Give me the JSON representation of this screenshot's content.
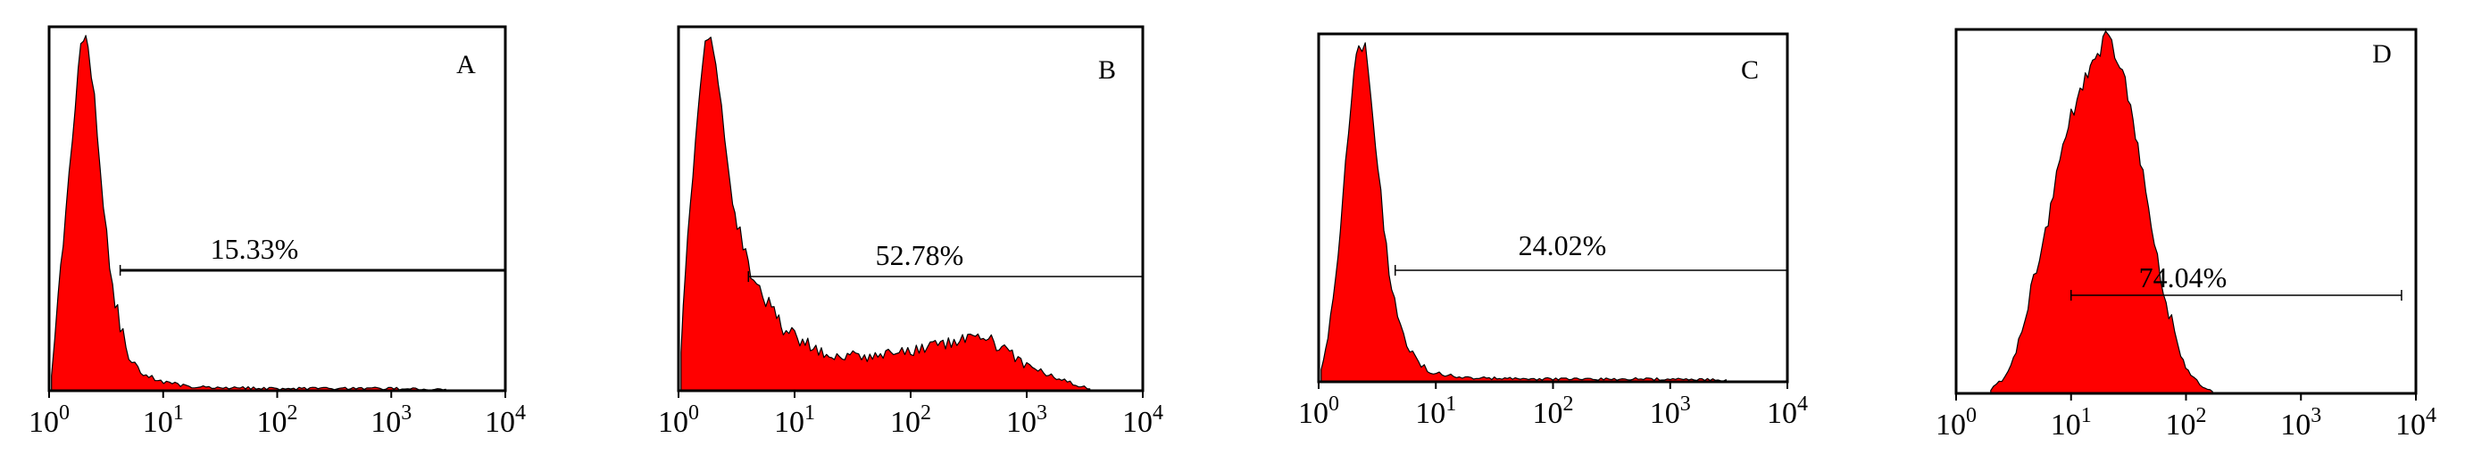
{
  "chart_data": [
    {
      "type": "area",
      "title": "A",
      "xscale": "log",
      "xlim": [
        1,
        10000
      ],
      "xticks": [
        {
          "base": "10",
          "exp": "0"
        },
        {
          "base": "10",
          "exp": "1"
        },
        {
          "base": "10",
          "exp": "2"
        },
        {
          "base": "10",
          "exp": "3"
        },
        {
          "base": "10",
          "exp": "4"
        }
      ],
      "gate": {
        "label": "15.33%",
        "x_range": [
          4.2,
          10000
        ]
      },
      "histogram": {
        "x": [
          1.05,
          1.2,
          1.4,
          1.6,
          1.8,
          2.0,
          2.2,
          2.5,
          2.8,
          3.2,
          3.6,
          4.2,
          5,
          6,
          7.5,
          9,
          12,
          15,
          20,
          30,
          50,
          100,
          300,
          1000,
          3000
        ],
        "y": [
          0.05,
          0.25,
          0.5,
          0.72,
          0.9,
          1.0,
          0.96,
          0.82,
          0.62,
          0.44,
          0.29,
          0.18,
          0.1,
          0.06,
          0.04,
          0.03,
          0.02,
          0.015,
          0.01,
          0.01,
          0.008,
          0.006,
          0.006,
          0.006,
          0.004
        ]
      }
    },
    {
      "type": "area",
      "title": "B",
      "xscale": "log",
      "xlim": [
        1,
        10000
      ],
      "xticks": [
        {
          "base": "10",
          "exp": "0"
        },
        {
          "base": "10",
          "exp": "1"
        },
        {
          "base": "10",
          "exp": "2"
        },
        {
          "base": "10",
          "exp": "3"
        },
        {
          "base": "10",
          "exp": "4"
        }
      ],
      "gate": {
        "label": "52.78%",
        "x_range": [
          4.0,
          10000
        ]
      },
      "histogram": {
        "x": [
          1.05,
          1.2,
          1.4,
          1.6,
          1.8,
          2.0,
          2.2,
          2.5,
          2.8,
          3.2,
          3.6,
          4.2,
          5,
          6,
          7,
          8,
          10,
          13,
          17,
          22,
          30,
          40,
          55,
          75,
          100,
          140,
          200,
          280,
          400,
          550,
          750,
          1000,
          1400,
          2000,
          2800,
          3500
        ],
        "y": [
          0.12,
          0.42,
          0.72,
          0.92,
          1.0,
          0.97,
          0.86,
          0.72,
          0.58,
          0.47,
          0.4,
          0.33,
          0.28,
          0.24,
          0.21,
          0.18,
          0.15,
          0.13,
          0.11,
          0.1,
          0.1,
          0.09,
          0.1,
          0.12,
          0.11,
          0.12,
          0.13,
          0.14,
          0.15,
          0.13,
          0.1,
          0.07,
          0.05,
          0.03,
          0.015,
          0.005
        ]
      }
    },
    {
      "type": "area",
      "title": "C",
      "xscale": "log",
      "xlim": [
        1,
        10000
      ],
      "xticks": [
        {
          "base": "10",
          "exp": "0"
        },
        {
          "base": "10",
          "exp": "1"
        },
        {
          "base": "10",
          "exp": "2"
        },
        {
          "base": "10",
          "exp": "3"
        },
        {
          "base": "10",
          "exp": "4"
        }
      ],
      "gate": {
        "label": "24.02%",
        "x_range": [
          4.5,
          10000
        ]
      },
      "histogram": {
        "x": [
          1.05,
          1.2,
          1.4,
          1.6,
          1.8,
          2.0,
          2.2,
          2.5,
          2.8,
          3.2,
          3.6,
          4.2,
          5,
          6,
          7.5,
          9,
          12,
          15,
          20,
          30,
          50,
          100,
          300,
          1000,
          3000
        ],
        "y": [
          0.04,
          0.12,
          0.3,
          0.52,
          0.74,
          0.9,
          1.0,
          0.98,
          0.85,
          0.64,
          0.44,
          0.28,
          0.16,
          0.09,
          0.05,
          0.03,
          0.02,
          0.015,
          0.012,
          0.01,
          0.01,
          0.008,
          0.008,
          0.008,
          0.006
        ]
      }
    },
    {
      "type": "area",
      "title": "D",
      "xscale": "log",
      "xlim": [
        1,
        10000
      ],
      "xticks": [
        {
          "base": "10",
          "exp": "0"
        },
        {
          "base": "10",
          "exp": "1"
        },
        {
          "base": "10",
          "exp": "2"
        },
        {
          "base": "10",
          "exp": "3"
        },
        {
          "base": "10",
          "exp": "4"
        }
      ],
      "gate": {
        "label": "74.04%",
        "x_range": [
          10,
          7500
        ]
      },
      "histogram": {
        "x": [
          2.0,
          2.5,
          3,
          3.5,
          4,
          5,
          6,
          7,
          8,
          9,
          10,
          12,
          14,
          17,
          20,
          24,
          28,
          33,
          40,
          50,
          60,
          75,
          90,
          110,
          140,
          170
        ],
        "y": [
          0.01,
          0.04,
          0.08,
          0.14,
          0.22,
          0.34,
          0.45,
          0.56,
          0.64,
          0.72,
          0.78,
          0.84,
          0.9,
          0.95,
          1.0,
          0.96,
          0.9,
          0.8,
          0.66,
          0.48,
          0.33,
          0.2,
          0.1,
          0.05,
          0.02,
          0.005
        ]
      }
    }
  ]
}
